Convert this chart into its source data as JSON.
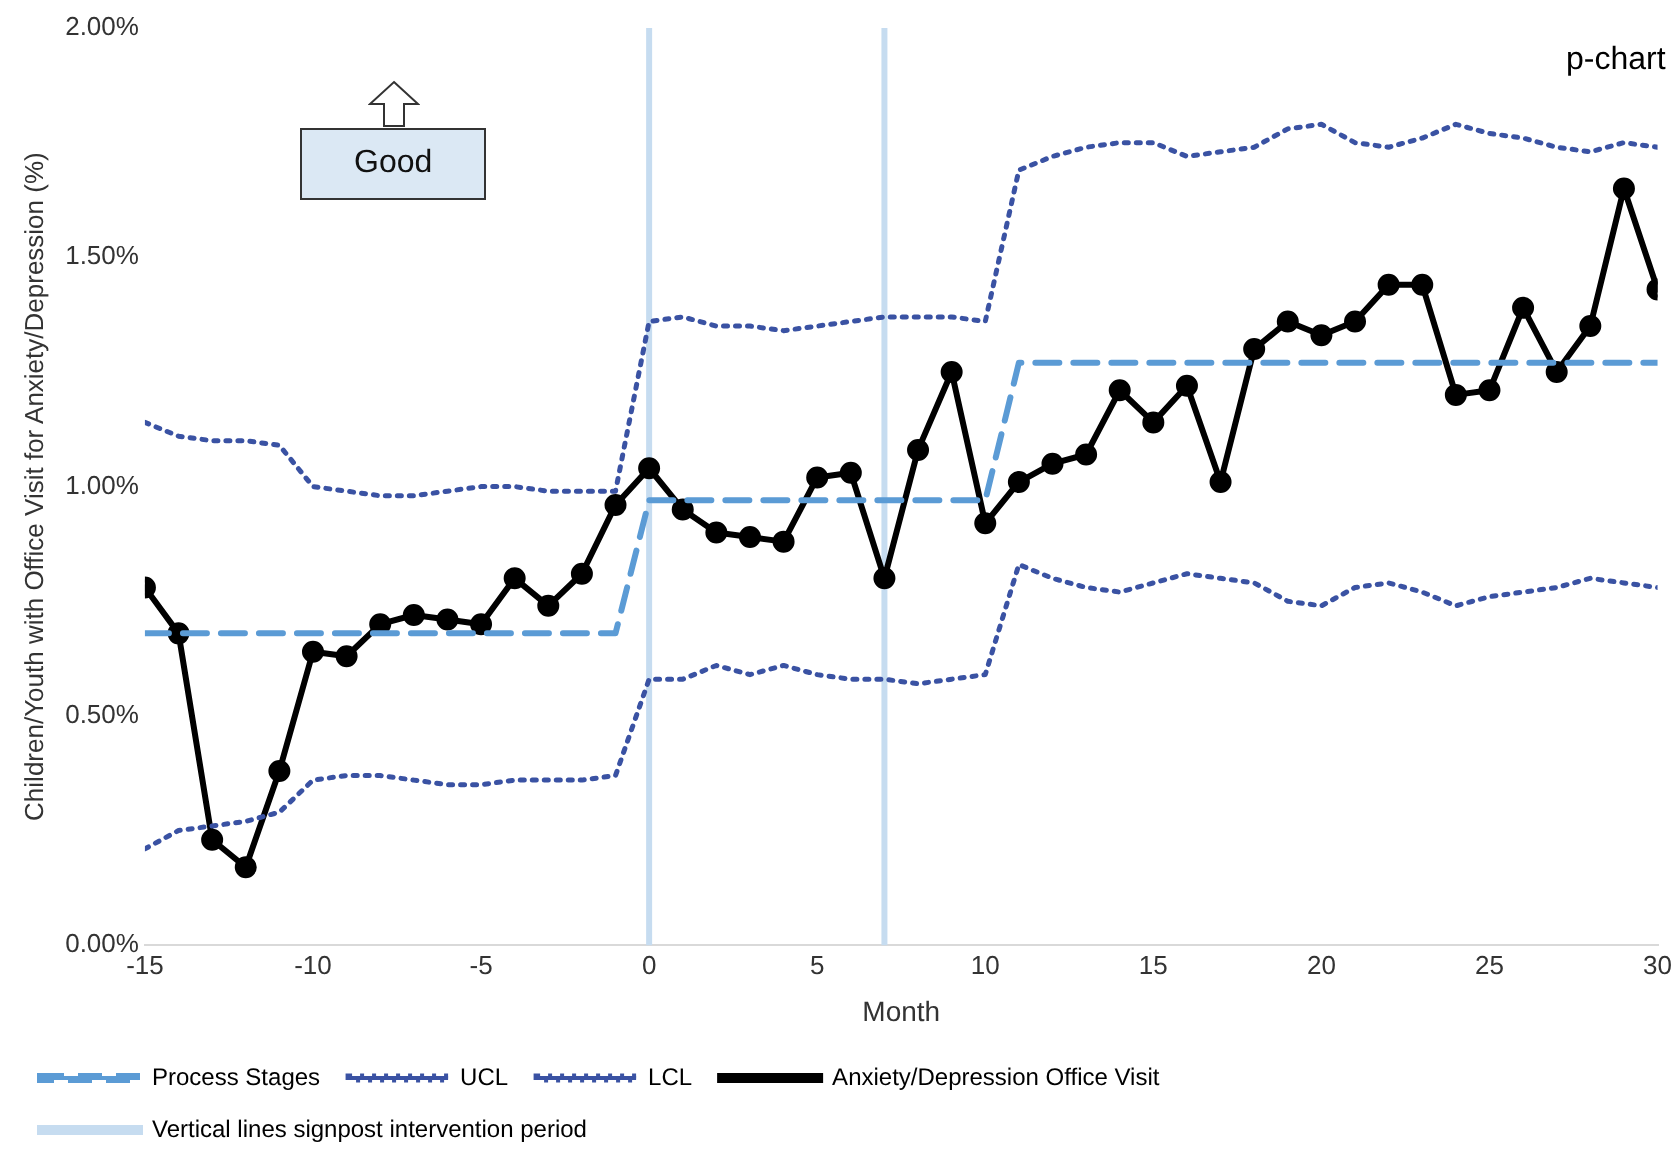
{
  "chart_data": {
    "type": "line",
    "xlabel": "Month",
    "ylabel": "Children/Youth with Office Visit for Anxiety/Depression (%)",
    "annotations": [
      "p-chart",
      "Good"
    ],
    "xlim": [
      -15,
      30
    ],
    "xticks": [
      -15,
      -10,
      -5,
      0,
      5,
      10,
      15,
      20,
      25,
      30
    ],
    "ylim": [
      0,
      2
    ],
    "yticks": [
      {
        "value": 0,
        "label": "0.00%"
      },
      {
        "value": 0.5,
        "label": "0.50%"
      },
      {
        "value": 1,
        "label": "1.00%"
      },
      {
        "value": 1.5,
        "label": "1.50%"
      },
      {
        "value": 2,
        "label": "2.00%"
      }
    ],
    "x": [
      -15,
      -14,
      -13,
      -12,
      -11,
      -10,
      -9,
      -8,
      -7,
      -6,
      -5,
      -4,
      -3,
      -2,
      -1,
      0,
      1,
      2,
      3,
      4,
      5,
      6,
      7,
      8,
      9,
      10,
      11,
      12,
      13,
      14,
      15,
      16,
      17,
      18,
      19,
      20,
      21,
      22,
      23,
      24,
      25,
      26,
      27,
      28,
      29,
      30
    ],
    "grid": false,
    "legend": "bottom",
    "series": [
      {
        "name": "Process Stages",
        "color": "#5b9bd5",
        "line_style": "dashed",
        "marker": "none",
        "x": [
          -15,
          -1,
          0,
          10,
          11,
          30
        ],
        "values": [
          0.68,
          0.68,
          0.97,
          0.97,
          1.27,
          1.27
        ]
      },
      {
        "name": "UCL",
        "color": "#3a52a3",
        "line_style": "dotted",
        "marker": "none",
        "values": [
          1.14,
          1.11,
          1.1,
          1.1,
          1.09,
          1.0,
          0.99,
          0.98,
          0.98,
          0.99,
          1.0,
          1.0,
          0.99,
          0.99,
          0.99,
          1.36,
          1.37,
          1.35,
          1.35,
          1.34,
          1.35,
          1.36,
          1.37,
          1.37,
          1.37,
          1.36,
          1.69,
          1.72,
          1.74,
          1.75,
          1.75,
          1.72,
          1.73,
          1.74,
          1.78,
          1.79,
          1.75,
          1.74,
          1.76,
          1.79,
          1.77,
          1.76,
          1.74,
          1.73,
          1.75,
          1.74
        ]
      },
      {
        "name": "LCL",
        "color": "#3a52a3",
        "line_style": "dotted",
        "marker": "none",
        "values": [
          0.21,
          0.25,
          0.26,
          0.27,
          0.29,
          0.36,
          0.37,
          0.37,
          0.36,
          0.35,
          0.35,
          0.36,
          0.36,
          0.36,
          0.37,
          0.58,
          0.58,
          0.61,
          0.59,
          0.61,
          0.59,
          0.58,
          0.58,
          0.57,
          0.58,
          0.59,
          0.83,
          0.8,
          0.78,
          0.77,
          0.79,
          0.81,
          0.8,
          0.79,
          0.75,
          0.74,
          0.78,
          0.79,
          0.77,
          0.74,
          0.76,
          0.77,
          0.78,
          0.8,
          0.79,
          0.78
        ]
      },
      {
        "name": "Anxiety/Depression Office Visit",
        "color": "#000000",
        "line_style": "solid",
        "marker": "circle",
        "values": [
          0.78,
          0.68,
          0.23,
          0.17,
          0.38,
          0.64,
          0.63,
          0.7,
          0.72,
          0.71,
          0.7,
          0.8,
          0.74,
          0.81,
          0.96,
          1.04,
          0.95,
          0.9,
          0.89,
          0.88,
          1.02,
          1.03,
          0.8,
          1.08,
          1.25,
          0.92,
          1.01,
          1.05,
          1.07,
          1.21,
          1.14,
          1.22,
          1.01,
          1.3,
          1.36,
          1.33,
          1.36,
          1.44,
          1.44,
          1.2,
          1.21,
          1.39,
          1.25,
          1.35,
          1.65,
          1.43
        ]
      }
    ],
    "ref_lines": [
      {
        "axis": "x",
        "value": 0,
        "label": "Vertical lines signpost intervention period",
        "color": "#c6dcf0"
      },
      {
        "axis": "x",
        "value": 7,
        "color": "#c6dcf0"
      }
    ]
  }
}
